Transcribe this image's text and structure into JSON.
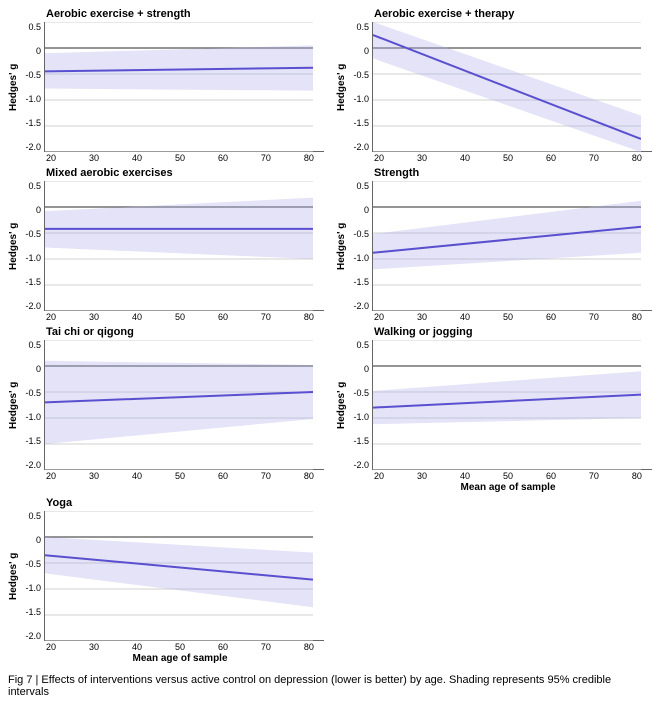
{
  "caption": "Fig 7 | Effects of interventions versus active control on depression (lower is better) by age. Shading represents 95% credible intervals",
  "layout": {
    "cols": 2,
    "panel_plot_width": 268,
    "panel_plot_height": 130
  },
  "style": {
    "line_color": "#5a4fcf",
    "band_color": "#b3aee8",
    "grid_color": "#d0d0d0",
    "zero_color": "#555555",
    "background": "#ffffff",
    "title_fontsize": 11,
    "tick_fontsize": 9,
    "label_fontsize": 10
  },
  "axes": {
    "ylabel": "Hedges' g",
    "xlabel": "Mean age of sample",
    "ylim": [
      -2.0,
      0.5
    ],
    "yticks": [
      0.5,
      0,
      -0.5,
      -1.0,
      -1.5,
      -2.0
    ],
    "xlim": [
      20,
      80
    ],
    "xticks": [
      20,
      30,
      40,
      50,
      60,
      70,
      80
    ]
  },
  "panels": [
    {
      "title": "Aerobic exercise + strength",
      "show_xlabel": false,
      "line": {
        "y_start": -0.45,
        "y_end": -0.38
      },
      "band": {
        "lo_start": -0.78,
        "lo_end": -0.82,
        "hi_start": -0.1,
        "hi_end": 0.05
      }
    },
    {
      "title": "Aerobic exercise + therapy",
      "show_xlabel": false,
      "line": {
        "y_start": 0.25,
        "y_end": -1.75
      },
      "band": {
        "lo_start": -0.2,
        "lo_end": -2.0,
        "hi_start": 0.5,
        "hi_end": -1.3
      }
    },
    {
      "title": "Mixed aerobic exercises",
      "show_xlabel": false,
      "line": {
        "y_start": -0.42,
        "y_end": -0.42
      },
      "band": {
        "lo_start": -0.78,
        "lo_end": -1.0,
        "hi_start": -0.08,
        "hi_end": 0.18
      }
    },
    {
      "title": "Strength",
      "show_xlabel": false,
      "line": {
        "y_start": -0.88,
        "y_end": -0.38
      },
      "band": {
        "lo_start": -1.2,
        "lo_end": -0.88,
        "hi_start": -0.52,
        "hi_end": 0.12
      }
    },
    {
      "title": "Tai chi or qigong",
      "show_xlabel": false,
      "line": {
        "y_start": -0.7,
        "y_end": -0.5
      },
      "band": {
        "lo_start": -1.5,
        "lo_end": -1.02,
        "hi_start": 0.1,
        "hi_end": 0.02
      }
    },
    {
      "title": "Walking or jogging",
      "show_xlabel": true,
      "line": {
        "y_start": -0.8,
        "y_end": -0.55
      },
      "band": {
        "lo_start": -1.12,
        "lo_end": -1.0,
        "hi_start": -0.48,
        "hi_end": -0.1
      }
    },
    {
      "title": "Yoga",
      "show_xlabel": true,
      "line": {
        "y_start": -0.35,
        "y_end": -0.82
      },
      "band": {
        "lo_start": -0.7,
        "lo_end": -1.35,
        "hi_start": 0.0,
        "hi_end": -0.3
      }
    }
  ]
}
